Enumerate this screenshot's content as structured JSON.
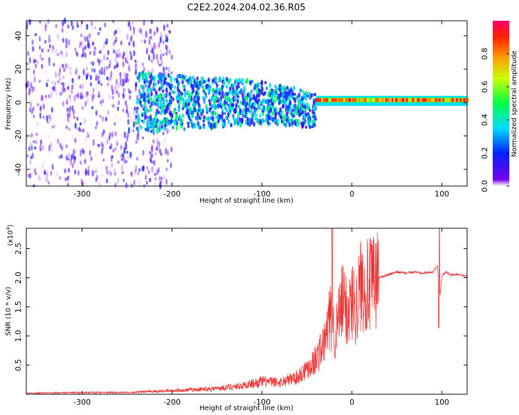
{
  "title": "C2E2.2024.204.02.36.R05",
  "colors": {
    "snr_line": "#ee3333",
    "frame": "#000000",
    "background": "#ffffff"
  },
  "chart_data": [
    {
      "type": "heatmap",
      "xlabel": "Height of straight line (km)",
      "ylabel": "Frequency (Hz)",
      "xlim": [
        -362,
        128
      ],
      "ylim": [
        -50,
        49
      ],
      "x_ticks": [
        "-300",
        "-200",
        "-100",
        "0",
        "100"
      ],
      "y_ticks": [
        "-40",
        "-20",
        "0",
        "20",
        "40"
      ],
      "colorbar": {
        "label": "Normalized spectral amplitude",
        "range": [
          0.0,
          1.0
        ],
        "ticks": [
          "0.0",
          "0.2",
          "0.4",
          "0.6",
          "0.8"
        ],
        "colormap": "rainbow"
      },
      "description_ranges": [
        {
          "x": [
            -362,
            -240
          ],
          "freq_spread": [
            -50,
            49
          ],
          "amplitude": [
            0.0,
            0.25
          ]
        },
        {
          "x": [
            -240,
            -40
          ],
          "freq_center": 0,
          "freq_spread": [
            -15,
            15
          ],
          "amplitude": [
            0.1,
            0.5
          ]
        },
        {
          "x": [
            -40,
            128
          ],
          "freq_center": 1.5,
          "freq_spread": [
            -2,
            4
          ],
          "amplitude": [
            0.5,
            1.0
          ]
        }
      ]
    },
    {
      "type": "line",
      "xlabel": "Height of straight line (km)",
      "ylabel": "SNR (10 * v/v)",
      "y_scale_label": "(x10",
      "y_scale_exp": "4",
      "y_scale_close": ")",
      "xlim": [
        -362,
        128
      ],
      "ylim": [
        0,
        2.85
      ],
      "x_ticks": [
        "-300",
        "-200",
        "-100",
        "0",
        "100"
      ],
      "y_ticks": [
        "0.5",
        "1.0",
        "1.5",
        "2.0",
        "2.5"
      ],
      "series": [
        {
          "x": [
            -362,
            -300,
            -250,
            -200,
            -150,
            -120,
            -100,
            -80,
            -60,
            -50,
            -40,
            -30,
            -25,
            -21,
            -18,
            -15,
            -10,
            -5,
            0,
            5,
            10,
            20,
            30,
            40,
            50,
            60,
            70,
            80,
            90,
            95,
            98,
            100,
            105,
            110,
            120,
            128
          ],
          "values": [
            0.02,
            0.03,
            0.03,
            0.06,
            0.1,
            0.15,
            0.22,
            0.2,
            0.3,
            0.45,
            0.6,
            0.9,
            1.3,
            1.2,
            1.0,
            1.3,
            1.6,
            1.4,
            1.6,
            1.5,
            1.9,
            1.85,
            2.0,
            2.05,
            2.1,
            2.08,
            2.1,
            2.08,
            2.1,
            2.2,
            1.7,
            2.05,
            2.1,
            2.05,
            2.05,
            2.03
          ]
        }
      ],
      "annotations": [
        {
          "x": -22,
          "peak": 2.85
        },
        {
          "x": 97,
          "peak": 2.85,
          "trough": 1.15
        }
      ]
    }
  ]
}
